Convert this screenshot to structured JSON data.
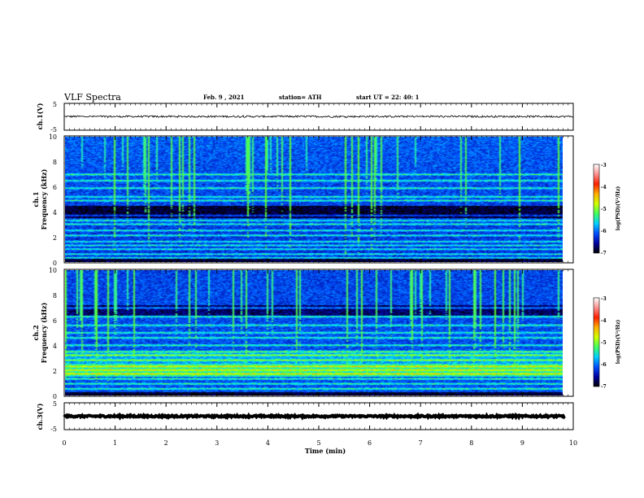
{
  "header": {
    "title": "VLF Spectra",
    "date": "Feb. 9  , 2021",
    "station": "station= ATH",
    "start": "start  UT =   22: 40: 1"
  },
  "colors": {
    "spec_low": "#00008c",
    "spec_mid": "#0050ff",
    "spec_cyan": "#00e0ff",
    "spec_green": "#60ff30",
    "colorbar": [
      "#000000",
      "#0000a0",
      "#0050ff",
      "#00d0ff",
      "#40ff60",
      "#d0ff00",
      "#ffb000",
      "#ff2000",
      "#ff9090",
      "#ffffff"
    ]
  },
  "chart_data": [
    {
      "type": "line",
      "panel": "ch1-waveform",
      "ylabel": "ch.1(V)",
      "x": [
        0,
        10
      ],
      "xlim": [
        0,
        10
      ],
      "ylim": [
        -5,
        5
      ],
      "yticks": [
        "5",
        "-5"
      ],
      "baseline": 0.1,
      "noise_amp": 0.35
    },
    {
      "type": "heatmap",
      "panel": "ch1-spectrogram",
      "ylabel_line1": "ch.1",
      "ylabel_line2": "Frequency  (kHz)",
      "xlim": [
        0,
        9.83
      ],
      "ylim": [
        0,
        10
      ],
      "yticks": [
        "0",
        "2",
        "4",
        "6",
        "8",
        "10"
      ],
      "colorbar": {
        "label": "log(PSD)(V²/Hz)",
        "range": [
          -7,
          -3
        ],
        "ticks": [
          "-3",
          "-4",
          "-5",
          "-6",
          "-7"
        ]
      },
      "bands_khz": [
        0.3,
        0.6,
        1.0,
        1.3,
        1.6,
        2.1,
        2.5,
        3.0,
        3.3,
        3.7,
        4.9,
        5.2,
        5.9,
        6.5,
        7.0
      ],
      "dark_band_khz": [
        3.5,
        4.5
      ]
    },
    {
      "type": "heatmap",
      "panel": "ch2-spectrogram",
      "ylabel_line1": "ch.2",
      "ylabel_line2": "Frequency  (kHz)",
      "xlim": [
        0,
        9.83
      ],
      "ylim": [
        0,
        10
      ],
      "yticks": [
        "0",
        "2",
        "4",
        "6",
        "8",
        "10"
      ],
      "colorbar": {
        "label": "log(PSD)(V²/Hz)",
        "range": [
          -7,
          -3
        ],
        "ticks": [
          "-3",
          "-4",
          "-5",
          "-6",
          "-7"
        ]
      },
      "bands_khz": [
        0.5,
        0.9,
        1.3,
        1.7,
        2.0,
        2.3,
        2.8,
        3.2,
        3.5,
        4.0,
        4.6,
        5.0,
        5.6,
        6.3,
        7.0
      ],
      "green_band_khz": [
        1.5,
        2.5
      ]
    },
    {
      "type": "line",
      "panel": "ch3-waveform",
      "ylabel": "ch.3(V)",
      "x": [
        0,
        9.83
      ],
      "xlim": [
        0,
        10
      ],
      "ylim": [
        -5,
        5
      ],
      "yticks": [
        "5",
        "-5"
      ],
      "baseline": 0.0,
      "noise_amp": 0.3
    }
  ],
  "xaxis": {
    "label": "Time  (min)",
    "ticks": [
      "0",
      "1",
      "2",
      "3",
      "4",
      "5",
      "6",
      "7",
      "8",
      "9",
      "10"
    ]
  }
}
